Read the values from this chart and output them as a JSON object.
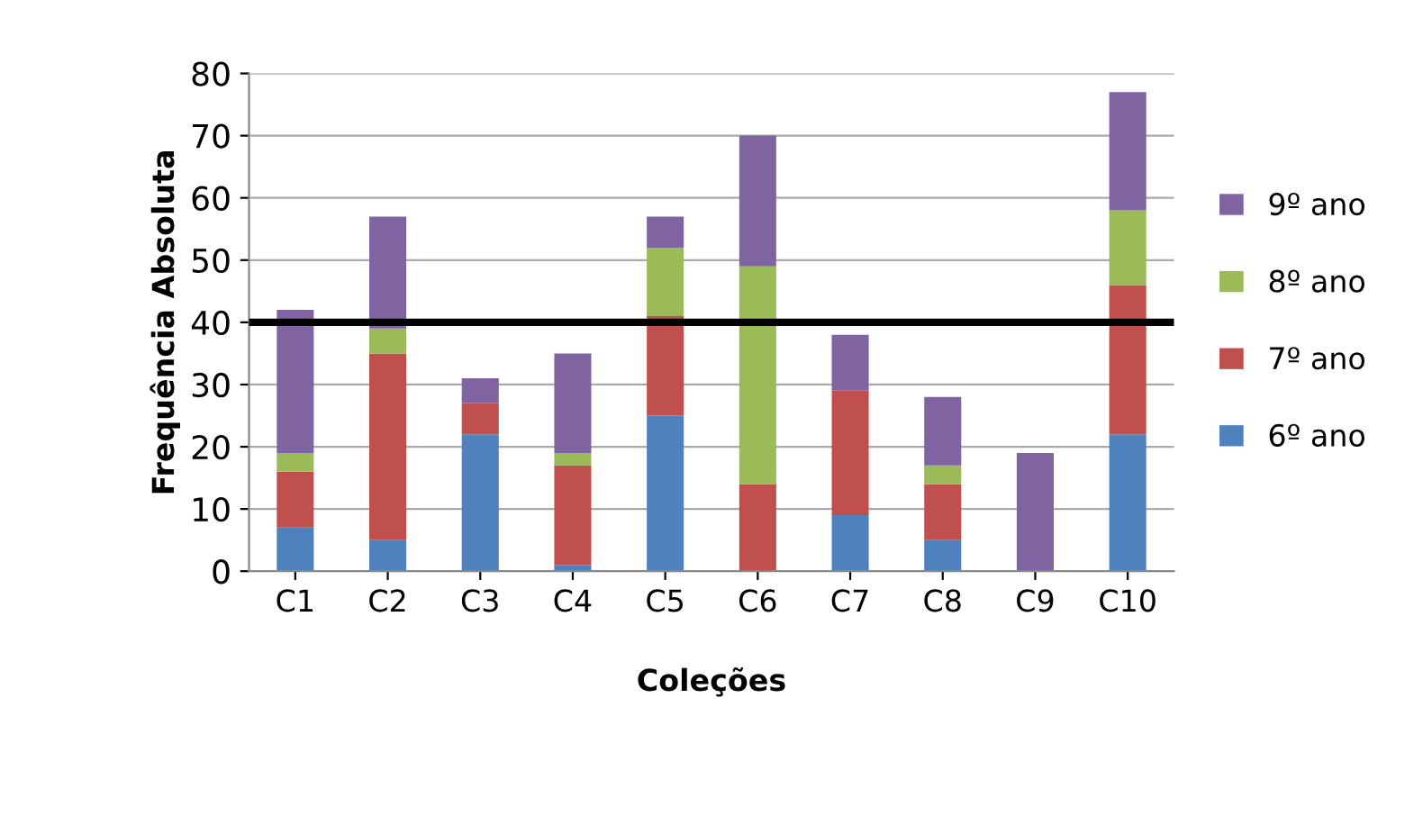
{
  "chart_data": {
    "type": "bar",
    "stacked": true,
    "xlabel": "Coleções",
    "ylabel": "Frequência Absoluta",
    "categories": [
      "C1",
      "C2",
      "C3",
      "C4",
      "C5",
      "C6",
      "C7",
      "C8",
      "C9",
      "C10"
    ],
    "series": [
      {
        "name": "6º ano",
        "color": "#4f81bd",
        "values": [
          7,
          5,
          22,
          1,
          25,
          0,
          9,
          5,
          0,
          22
        ]
      },
      {
        "name": "7º ano",
        "color": "#c0504d",
        "values": [
          9,
          30,
          5,
          16,
          16,
          14,
          20,
          9,
          0,
          24
        ]
      },
      {
        "name": "8º ano",
        "color": "#9bbb59",
        "values": [
          3,
          4,
          0,
          2,
          11,
          35,
          0,
          3,
          0,
          12
        ]
      },
      {
        "name": "9º ano",
        "color": "#8064a2",
        "values": [
          23,
          18,
          4,
          16,
          5,
          21,
          9,
          11,
          19,
          19
        ]
      }
    ],
    "ylim": [
      0,
      80
    ],
    "yticks": [
      0,
      10,
      20,
      30,
      40,
      50,
      60,
      70,
      80
    ],
    "grid": "y",
    "legend": "right",
    "ref_lines": [
      {
        "axis": "y",
        "value": 40,
        "color": "#000000",
        "line_style": "solid"
      }
    ]
  }
}
